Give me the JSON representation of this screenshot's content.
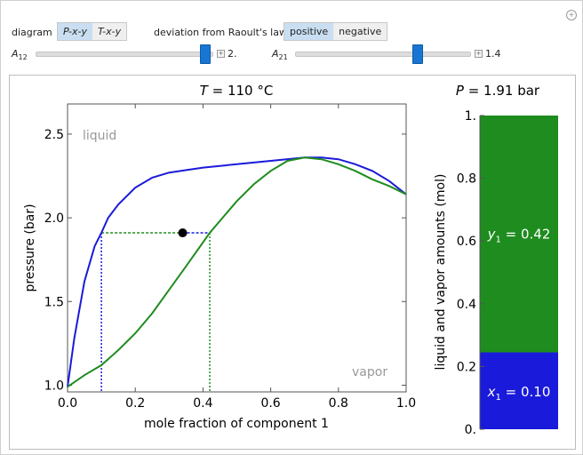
{
  "controls": {
    "diagram_label": "diagram",
    "diagram_options": [
      "P-x-y",
      "T-x-y"
    ],
    "diagram_selected": 0,
    "deviation_label": "deviation from Raoult's law",
    "deviation_options": [
      "positive",
      "negative"
    ],
    "deviation_selected": 0,
    "a12_label": "A",
    "a12_sub": "12",
    "a12_value": "2.",
    "a12_fraction": 0.96,
    "a21_label": "A",
    "a21_sub": "21",
    "a21_value": "1.4",
    "a21_fraction": 0.7
  },
  "colors": {
    "liquid": "#1a1adb",
    "vapor": "#1e8c1e",
    "point": "#000000"
  },
  "chart_data": [
    {
      "type": "line",
      "title_var": "T",
      "title_rest": " = 110 °C",
      "xlabel": "mole fraction of component 1",
      "ylabel": "pressure (bar)",
      "xlim": [
        0,
        1
      ],
      "ylim": [
        0.96,
        2.68
      ],
      "xticks": [
        "0.0",
        "0.2",
        "0.4",
        "0.6",
        "0.8",
        "1.0"
      ],
      "yticks": [
        "1.0",
        "1.5",
        "2.0",
        "2.5"
      ],
      "region_labels": {
        "liquid": "liquid",
        "vapor": "vapor"
      },
      "series": [
        {
          "key": "liquid",
          "x": [
            0,
            0.02,
            0.05,
            0.08,
            0.1,
            0.12,
            0.15,
            0.2,
            0.25,
            0.3,
            0.4,
            0.5,
            0.6,
            0.7,
            0.75,
            0.8,
            0.85,
            0.9,
            0.95,
            1.0
          ],
          "y": [
            0.99,
            1.28,
            1.62,
            1.83,
            1.91,
            2.0,
            2.08,
            2.18,
            2.24,
            2.27,
            2.3,
            2.32,
            2.34,
            2.36,
            2.36,
            2.35,
            2.32,
            2.28,
            2.22,
            2.14
          ]
        },
        {
          "key": "vapor",
          "x": [
            0,
            0.05,
            0.1,
            0.15,
            0.2,
            0.25,
            0.3,
            0.35,
            0.42,
            0.5,
            0.55,
            0.6,
            0.65,
            0.7,
            0.75,
            0.8,
            0.85,
            0.9,
            0.95,
            1.0
          ],
          "y": [
            0.99,
            1.06,
            1.12,
            1.21,
            1.31,
            1.43,
            1.57,
            1.71,
            1.91,
            2.1,
            2.2,
            2.28,
            2.34,
            2.36,
            2.35,
            2.32,
            2.28,
            2.23,
            2.19,
            2.14
          ]
        }
      ],
      "tie_line": {
        "x_liquid": 0.1,
        "x_vapor": 0.42,
        "y": 1.91,
        "point_x": 0.34
      }
    },
    {
      "type": "bar",
      "title_var": "P",
      "title_rest": " = 1.91 bar",
      "ylabel": "liquid and vapor amounts (mol)",
      "ylim": [
        0,
        1
      ],
      "yticks": [
        "0.",
        "0.2",
        "0.4",
        "0.6",
        "0.8",
        "1."
      ],
      "liquid_amount": 0.245,
      "labels": {
        "vapor_var": "y",
        "vapor_sub": "1",
        "vapor_rest": " = 0.42",
        "liquid_var": "x",
        "liquid_sub": "1",
        "liquid_rest": " = 0.10"
      }
    }
  ]
}
